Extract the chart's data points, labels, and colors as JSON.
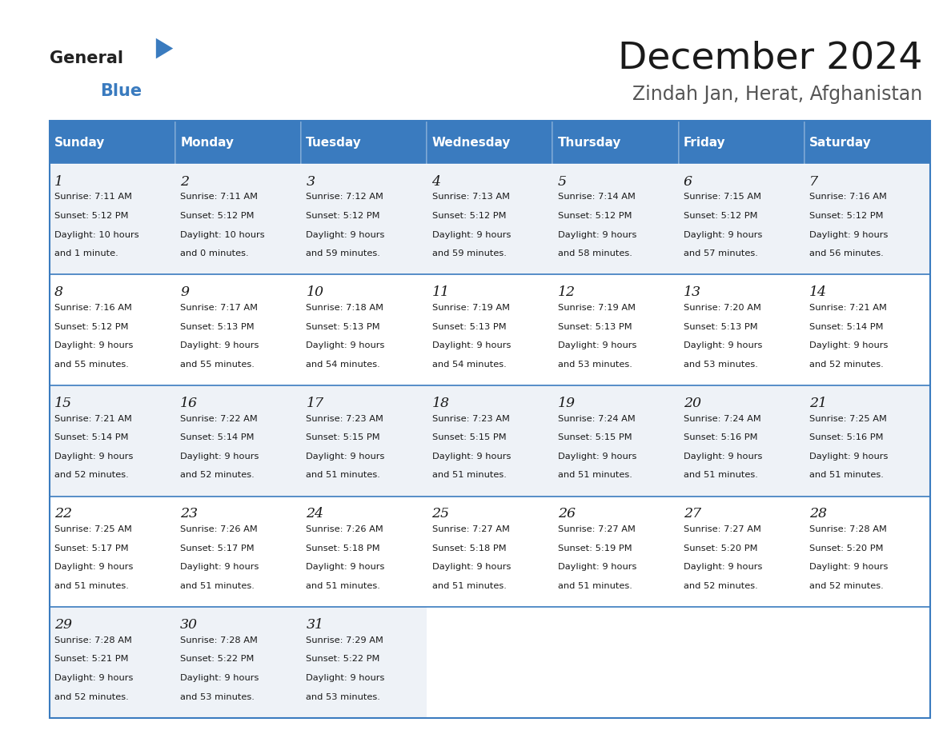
{
  "title": "December 2024",
  "subtitle": "Zindah Jan, Herat, Afghanistan",
  "header_bg": "#3a7bbf",
  "header_text": "#ffffff",
  "cell_bg_light": "#eef2f7",
  "cell_bg_white": "#ffffff",
  "border_color": "#3a7bbf",
  "text_color": "#1a1a1a",
  "days_of_week": [
    "Sunday",
    "Monday",
    "Tuesday",
    "Wednesday",
    "Thursday",
    "Friday",
    "Saturday"
  ],
  "calendar": [
    [
      {
        "day": "1",
        "sunrise": "7:11 AM",
        "sunset": "5:12 PM",
        "dl1": "10 hours",
        "dl2": "and 1 minute."
      },
      {
        "day": "2",
        "sunrise": "7:11 AM",
        "sunset": "5:12 PM",
        "dl1": "10 hours",
        "dl2": "and 0 minutes."
      },
      {
        "day": "3",
        "sunrise": "7:12 AM",
        "sunset": "5:12 PM",
        "dl1": "9 hours",
        "dl2": "and 59 minutes."
      },
      {
        "day": "4",
        "sunrise": "7:13 AM",
        "sunset": "5:12 PM",
        "dl1": "9 hours",
        "dl2": "and 59 minutes."
      },
      {
        "day": "5",
        "sunrise": "7:14 AM",
        "sunset": "5:12 PM",
        "dl1": "9 hours",
        "dl2": "and 58 minutes."
      },
      {
        "day": "6",
        "sunrise": "7:15 AM",
        "sunset": "5:12 PM",
        "dl1": "9 hours",
        "dl2": "and 57 minutes."
      },
      {
        "day": "7",
        "sunrise": "7:16 AM",
        "sunset": "5:12 PM",
        "dl1": "9 hours",
        "dl2": "and 56 minutes."
      }
    ],
    [
      {
        "day": "8",
        "sunrise": "7:16 AM",
        "sunset": "5:12 PM",
        "dl1": "9 hours",
        "dl2": "and 55 minutes."
      },
      {
        "day": "9",
        "sunrise": "7:17 AM",
        "sunset": "5:13 PM",
        "dl1": "9 hours",
        "dl2": "and 55 minutes."
      },
      {
        "day": "10",
        "sunrise": "7:18 AM",
        "sunset": "5:13 PM",
        "dl1": "9 hours",
        "dl2": "and 54 minutes."
      },
      {
        "day": "11",
        "sunrise": "7:19 AM",
        "sunset": "5:13 PM",
        "dl1": "9 hours",
        "dl2": "and 54 minutes."
      },
      {
        "day": "12",
        "sunrise": "7:19 AM",
        "sunset": "5:13 PM",
        "dl1": "9 hours",
        "dl2": "and 53 minutes."
      },
      {
        "day": "13",
        "sunrise": "7:20 AM",
        "sunset": "5:13 PM",
        "dl1": "9 hours",
        "dl2": "and 53 minutes."
      },
      {
        "day": "14",
        "sunrise": "7:21 AM",
        "sunset": "5:14 PM",
        "dl1": "9 hours",
        "dl2": "and 52 minutes."
      }
    ],
    [
      {
        "day": "15",
        "sunrise": "7:21 AM",
        "sunset": "5:14 PM",
        "dl1": "9 hours",
        "dl2": "and 52 minutes."
      },
      {
        "day": "16",
        "sunrise": "7:22 AM",
        "sunset": "5:14 PM",
        "dl1": "9 hours",
        "dl2": "and 52 minutes."
      },
      {
        "day": "17",
        "sunrise": "7:23 AM",
        "sunset": "5:15 PM",
        "dl1": "9 hours",
        "dl2": "and 51 minutes."
      },
      {
        "day": "18",
        "sunrise": "7:23 AM",
        "sunset": "5:15 PM",
        "dl1": "9 hours",
        "dl2": "and 51 minutes."
      },
      {
        "day": "19",
        "sunrise": "7:24 AM",
        "sunset": "5:15 PM",
        "dl1": "9 hours",
        "dl2": "and 51 minutes."
      },
      {
        "day": "20",
        "sunrise": "7:24 AM",
        "sunset": "5:16 PM",
        "dl1": "9 hours",
        "dl2": "and 51 minutes."
      },
      {
        "day": "21",
        "sunrise": "7:25 AM",
        "sunset": "5:16 PM",
        "dl1": "9 hours",
        "dl2": "and 51 minutes."
      }
    ],
    [
      {
        "day": "22",
        "sunrise": "7:25 AM",
        "sunset": "5:17 PM",
        "dl1": "9 hours",
        "dl2": "and 51 minutes."
      },
      {
        "day": "23",
        "sunrise": "7:26 AM",
        "sunset": "5:17 PM",
        "dl1": "9 hours",
        "dl2": "and 51 minutes."
      },
      {
        "day": "24",
        "sunrise": "7:26 AM",
        "sunset": "5:18 PM",
        "dl1": "9 hours",
        "dl2": "and 51 minutes."
      },
      {
        "day": "25",
        "sunrise": "7:27 AM",
        "sunset": "5:18 PM",
        "dl1": "9 hours",
        "dl2": "and 51 minutes."
      },
      {
        "day": "26",
        "sunrise": "7:27 AM",
        "sunset": "5:19 PM",
        "dl1": "9 hours",
        "dl2": "and 51 minutes."
      },
      {
        "day": "27",
        "sunrise": "7:27 AM",
        "sunset": "5:20 PM",
        "dl1": "9 hours",
        "dl2": "and 52 minutes."
      },
      {
        "day": "28",
        "sunrise": "7:28 AM",
        "sunset": "5:20 PM",
        "dl1": "9 hours",
        "dl2": "and 52 minutes."
      }
    ],
    [
      {
        "day": "29",
        "sunrise": "7:28 AM",
        "sunset": "5:21 PM",
        "dl1": "9 hours",
        "dl2": "and 52 minutes."
      },
      {
        "day": "30",
        "sunrise": "7:28 AM",
        "sunset": "5:22 PM",
        "dl1": "9 hours",
        "dl2": "and 53 minutes."
      },
      {
        "day": "31",
        "sunrise": "7:29 AM",
        "sunset": "5:22 PM",
        "dl1": "9 hours",
        "dl2": "and 53 minutes."
      },
      null,
      null,
      null,
      null
    ]
  ]
}
